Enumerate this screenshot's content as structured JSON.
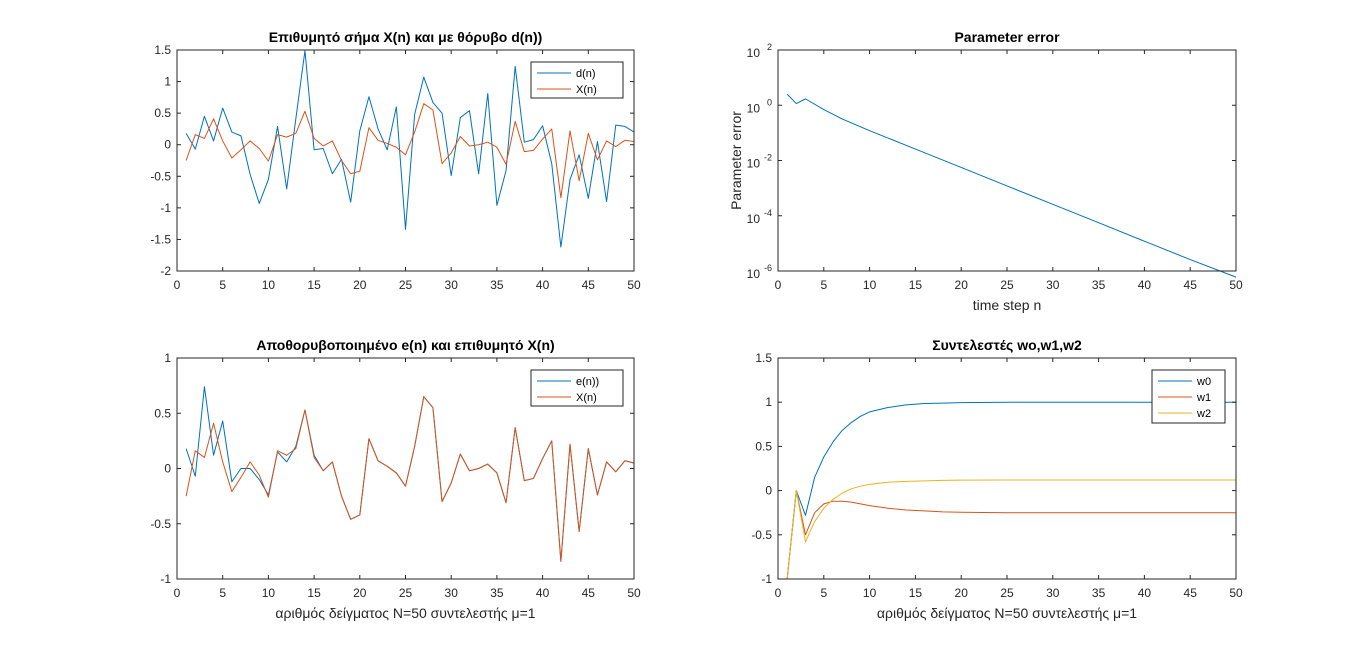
{
  "chart_data": [
    {
      "type": "line",
      "title": "Επιθυμητό σήμα X(n) και με θόρυβο d(n))",
      "xlabel": "",
      "ylabel": "",
      "xlim": [
        0,
        50
      ],
      "ylim": [
        -2,
        1.5
      ],
      "xticks": [
        0,
        5,
        10,
        15,
        20,
        25,
        30,
        35,
        40,
        45,
        50
      ],
      "yticks": [
        -2,
        -1.5,
        -1,
        -0.5,
        0,
        0.5,
        1,
        1.5
      ],
      "ytick_labels": [
        "-2",
        "-1.5",
        "-1",
        "-0.5",
        "0",
        "0.5",
        "1",
        "1.5"
      ],
      "legend_position": "top-right",
      "x": [
        1,
        2,
        3,
        4,
        5,
        6,
        7,
        8,
        9,
        10,
        11,
        12,
        13,
        14,
        15,
        16,
        17,
        18,
        19,
        20,
        21,
        22,
        23,
        24,
        25,
        26,
        27,
        28,
        29,
        30,
        31,
        32,
        33,
        34,
        35,
        36,
        37,
        38,
        39,
        40,
        41,
        42,
        43,
        44,
        45,
        46,
        47,
        48,
        49,
        50
      ],
      "series": [
        {
          "name": "d(n)",
          "color": "#0072BD",
          "values": [
            0.18,
            -0.07,
            0.45,
            0.06,
            0.58,
            0.2,
            0.14,
            -0.47,
            -0.93,
            -0.55,
            0.29,
            -0.7,
            0.41,
            1.49,
            -0.08,
            -0.06,
            -0.46,
            -0.23,
            -0.91,
            0.22,
            0.76,
            0.25,
            -0.08,
            0.6,
            -1.34,
            0.48,
            1.07,
            0.67,
            0.5,
            -0.49,
            0.43,
            0.54,
            -0.46,
            0.81,
            -0.96,
            -0.41,
            1.24,
            0.04,
            0.08,
            0.3,
            -0.3,
            -1.62,
            -0.55,
            -0.16,
            -0.85,
            0.05,
            -0.9,
            0.31,
            0.29,
            0.2
          ]
        },
        {
          "name": "X(n)",
          "color": "#D95319",
          "values": [
            -0.25,
            0.16,
            0.1,
            0.41,
            0.06,
            -0.21,
            -0.08,
            0.06,
            -0.06,
            -0.26,
            0.16,
            0.12,
            0.18,
            0.53,
            0.1,
            -0.02,
            0.06,
            -0.25,
            -0.46,
            -0.42,
            0.27,
            0.07,
            0.02,
            -0.04,
            -0.16,
            0.2,
            0.65,
            0.55,
            -0.3,
            -0.13,
            0.13,
            -0.02,
            0,
            0.04,
            -0.04,
            -0.31,
            0.37,
            -0.11,
            -0.09,
            0.09,
            0.25,
            -0.84,
            0.22,
            -0.57,
            0.18,
            -0.24,
            0.06,
            -0.03,
            0.07,
            0.05
          ]
        }
      ]
    },
    {
      "type": "line",
      "title": "Parameter error",
      "xlabel": "time step n",
      "ylabel": "Parameter error",
      "xlim": [
        0,
        50
      ],
      "ylim": [
        1e-06,
        100
      ],
      "yscale": "log",
      "xticks": [
        0,
        5,
        10,
        15,
        20,
        25,
        30,
        35,
        40,
        45,
        50
      ],
      "yticks": [
        1e-06,
        0.0001,
        0.01,
        1,
        100
      ],
      "ytick_labels": [
        {
          "base": "10",
          "exp": "-6"
        },
        {
          "base": "10",
          "exp": "-4"
        },
        {
          "base": "10",
          "exp": "-2"
        },
        {
          "base": "10",
          "exp": "0"
        },
        {
          "base": "10",
          "exp": "2"
        }
      ],
      "x": [
        1,
        2,
        3,
        5,
        7,
        10,
        15,
        20,
        25,
        30,
        35,
        40,
        45,
        50
      ],
      "series": [
        {
          "name": "",
          "color": "#0072BD",
          "values": [
            2.5,
            1.15,
            1.7,
            0.7,
            0.32,
            0.12,
            0.026,
            0.0056,
            0.0012,
            0.00026,
            5.6e-05,
            1.2e-05,
            2.6e-06,
            6e-07
          ]
        }
      ]
    },
    {
      "type": "line",
      "title": "Αποθορυβοποιημένο e(n) και επιθυμητό X(n)",
      "xlabel": "αριθμός δείγματος N=50 συντελεστής μ=1",
      "ylabel": "",
      "xlim": [
        0,
        50
      ],
      "ylim": [
        -1,
        1
      ],
      "xticks": [
        0,
        5,
        10,
        15,
        20,
        25,
        30,
        35,
        40,
        45,
        50
      ],
      "yticks": [
        -1,
        -0.5,
        0,
        0.5,
        1
      ],
      "ytick_labels": [
        "-1",
        "-0.5",
        "0",
        "0.5",
        "1"
      ],
      "legend_position": "top-right",
      "x": [
        1,
        2,
        3,
        4,
        5,
        6,
        7,
        8,
        9,
        10,
        11,
        12,
        13,
        14,
        15,
        16,
        17,
        18,
        19,
        20,
        21,
        22,
        23,
        24,
        25,
        26,
        27,
        28,
        29,
        30,
        31,
        32,
        33,
        34,
        35,
        36,
        37,
        38,
        39,
        40,
        41,
        42,
        43,
        44,
        45,
        46,
        47,
        48,
        49,
        50
      ],
      "series": [
        {
          "name": "e(n))",
          "color": "#0072BD",
          "values": [
            0.18,
            -0.07,
            0.74,
            0.12,
            0.43,
            -0.12,
            0,
            0,
            -0.1,
            -0.24,
            0.15,
            0.06,
            0.2,
            0.53,
            0.12,
            -0.02,
            0.06,
            -0.25,
            -0.46,
            -0.42,
            0.27,
            0.07,
            0.02,
            -0.04,
            -0.16,
            0.2,
            0.65,
            0.55,
            -0.3,
            -0.13,
            0.13,
            -0.02,
            0,
            0.04,
            -0.04,
            -0.31,
            0.37,
            -0.11,
            -0.09,
            0.09,
            0.25,
            -0.84,
            0.22,
            -0.57,
            0.18,
            -0.24,
            0.06,
            -0.03,
            0.07,
            0.05
          ]
        },
        {
          "name": "X(n)",
          "color": "#D95319",
          "values": [
            -0.25,
            0.16,
            0.1,
            0.41,
            0.06,
            -0.21,
            -0.08,
            0.06,
            -0.06,
            -0.26,
            0.16,
            0.12,
            0.18,
            0.53,
            0.1,
            -0.02,
            0.06,
            -0.25,
            -0.46,
            -0.42,
            0.27,
            0.07,
            0.02,
            -0.04,
            -0.16,
            0.2,
            0.65,
            0.55,
            -0.3,
            -0.13,
            0.13,
            -0.02,
            0,
            0.04,
            -0.04,
            -0.31,
            0.37,
            -0.11,
            -0.09,
            0.09,
            0.25,
            -0.84,
            0.22,
            -0.57,
            0.18,
            -0.24,
            0.06,
            -0.03,
            0.07,
            0.05
          ]
        }
      ]
    },
    {
      "type": "line",
      "title": "Συντελεστές wo,w1,w2",
      "xlabel": "αριθμός δείγματος N=50 συντελεστής μ=1",
      "ylabel": "",
      "xlim": [
        0,
        50
      ],
      "ylim": [
        -1,
        1.5
      ],
      "xticks": [
        0,
        5,
        10,
        15,
        20,
        25,
        30,
        35,
        40,
        45,
        50
      ],
      "yticks": [
        -1,
        -0.5,
        0,
        0.5,
        1,
        1.5
      ],
      "ytick_labels": [
        "-1",
        "-0.5",
        "0",
        "0.5",
        "1",
        "1.5"
      ],
      "legend_position": "top-right",
      "x": [
        1,
        2,
        3,
        4,
        5,
        6,
        7,
        8,
        9,
        10,
        12,
        14,
        16,
        18,
        20,
        25,
        30,
        35,
        40,
        45,
        50
      ],
      "series": [
        {
          "name": "w0",
          "color": "#0072BD",
          "values": [
            -1,
            0,
            -0.28,
            0.15,
            0.38,
            0.55,
            0.68,
            0.77,
            0.84,
            0.89,
            0.94,
            0.97,
            0.985,
            0.99,
            0.995,
            1,
            1,
            1,
            1,
            1,
            1
          ]
        },
        {
          "name": "w1",
          "color": "#D95319",
          "values": [
            -1,
            0,
            -0.5,
            -0.25,
            -0.15,
            -0.12,
            -0.12,
            -0.13,
            -0.15,
            -0.17,
            -0.2,
            -0.22,
            -0.23,
            -0.24,
            -0.245,
            -0.25,
            -0.25,
            -0.25,
            -0.25,
            -0.25,
            -0.25
          ]
        },
        {
          "name": "w2",
          "color": "#EDB120",
          "values": [
            -1,
            0,
            -0.58,
            -0.35,
            -0.2,
            -0.1,
            -0.03,
            0.02,
            0.05,
            0.07,
            0.095,
            0.105,
            0.11,
            0.115,
            0.118,
            0.12,
            0.12,
            0.12,
            0.12,
            0.12,
            0.12
          ]
        }
      ]
    }
  ]
}
